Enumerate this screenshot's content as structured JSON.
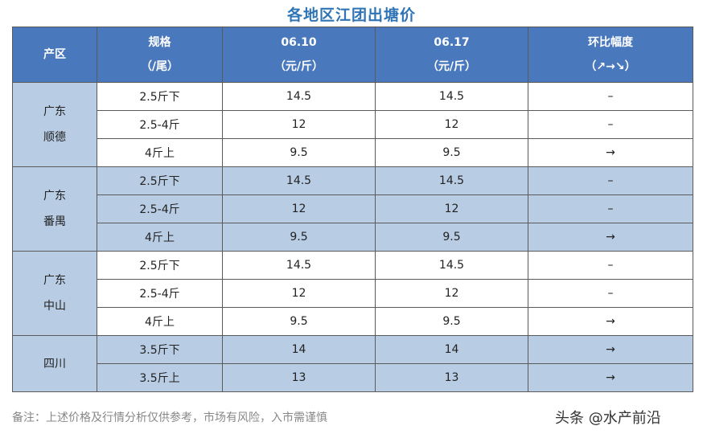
{
  "title": "各地区江团出塘价",
  "headers": {
    "region": "产区",
    "spec_line1": "规格",
    "spec_line2": "（/尾）",
    "d1_line1": "06.10",
    "d1_line2": "（元/斤）",
    "d2_line1": "06.17",
    "d2_line2": "（元/斤）",
    "chg_line1": "环比幅度",
    "chg_line2": "（↗→↘）"
  },
  "groups": [
    {
      "region_line1": "广东",
      "region_line2": "顺德",
      "shade": "white",
      "rows": [
        {
          "spec": "2.5斤下",
          "d1": "14.5",
          "d2": "14.5",
          "chg": "–"
        },
        {
          "spec": "2.5-4斤",
          "d1": "12",
          "d2": "12",
          "chg": "–"
        },
        {
          "spec": "4斤上",
          "d1": "9.5",
          "d2": "9.5",
          "chg": "→"
        }
      ]
    },
    {
      "region_line1": "广东",
      "region_line2": "番禺",
      "shade": "blue",
      "rows": [
        {
          "spec": "2.5斤下",
          "d1": "14.5",
          "d2": "14.5",
          "chg": "–"
        },
        {
          "spec": "2.5-4斤",
          "d1": "12",
          "d2": "12",
          "chg": "–"
        },
        {
          "spec": "4斤上",
          "d1": "9.5",
          "d2": "9.5",
          "chg": "→"
        }
      ]
    },
    {
      "region_line1": "广东",
      "region_line2": "中山",
      "shade": "white",
      "rows": [
        {
          "spec": "2.5斤下",
          "d1": "14.5",
          "d2": "14.5",
          "chg": "–"
        },
        {
          "spec": "2.5-4斤",
          "d1": "12",
          "d2": "12",
          "chg": "–"
        },
        {
          "spec": "4斤上",
          "d1": "9.5",
          "d2": "9.5",
          "chg": "→"
        }
      ]
    },
    {
      "region_line1": "四川",
      "region_line2": "",
      "shade": "blue",
      "rows": [
        {
          "spec": "3.5斤下",
          "d1": "14",
          "d2": "14",
          "chg": "→"
        },
        {
          "spec": "3.5斤上",
          "d1": "13",
          "d2": "13",
          "chg": "→"
        }
      ]
    }
  ],
  "note": "备注：上述价格及行情分析仅供参考，市场有风险，入市需谨慎",
  "watermark": "头条 @水产前沿"
}
